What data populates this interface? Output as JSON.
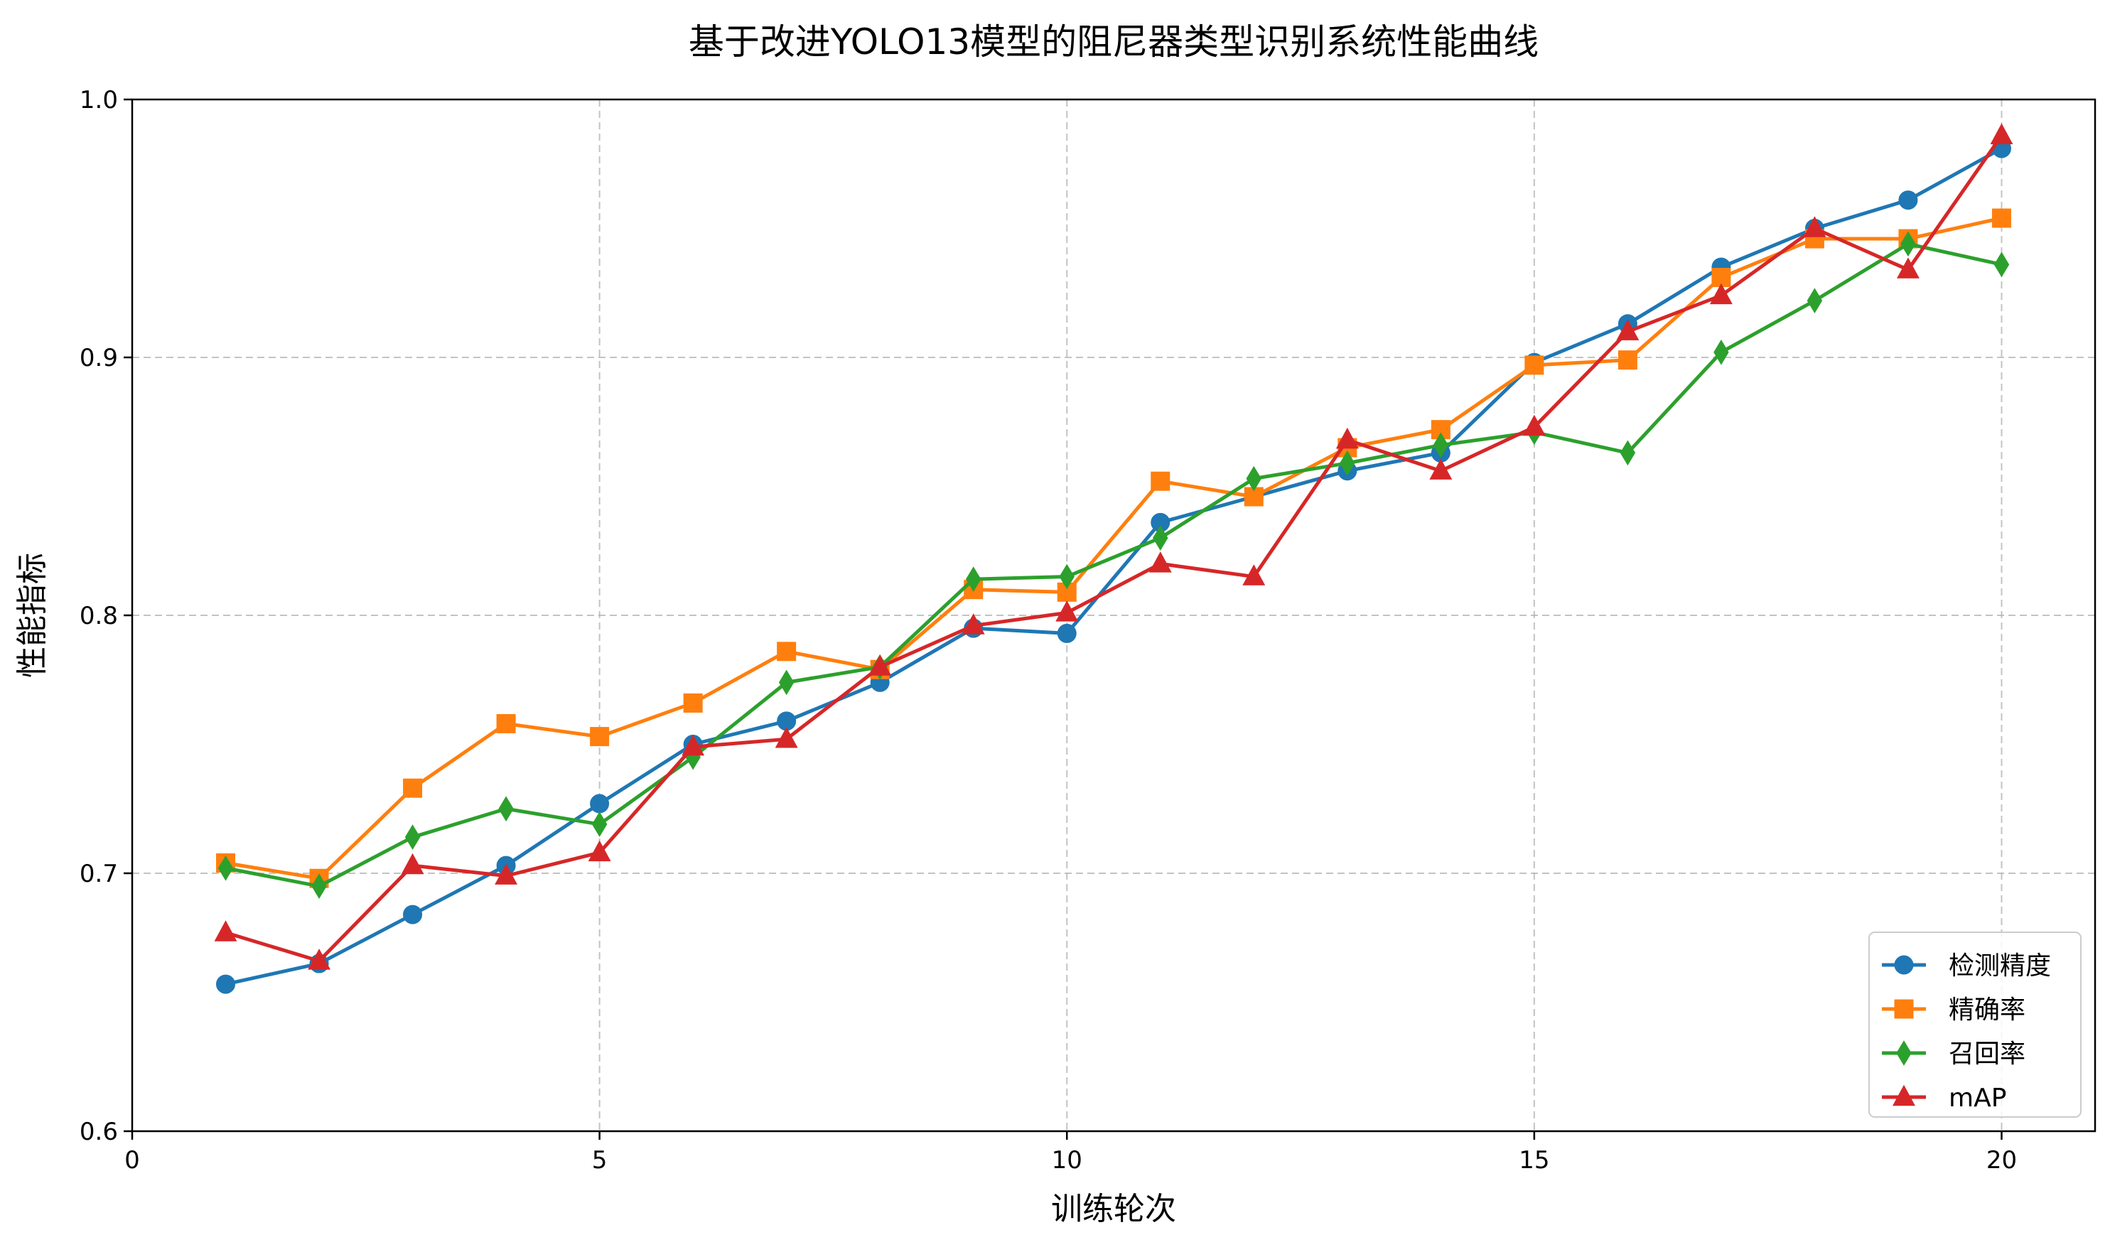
{
  "chart_data": {
    "type": "line",
    "title": "基于改进YOLO13模型的阻尼器类型识别系统性能曲线",
    "xlabel": "训练轮次",
    "ylabel": "性能指标",
    "xlim": [
      0,
      21
    ],
    "ylim": [
      0.6,
      1.0
    ],
    "xticks": [
      0,
      5,
      10,
      15,
      20
    ],
    "yticks": [
      0.6,
      0.7,
      0.8,
      0.9,
      1.0
    ],
    "xtick_labels": [
      "0",
      "5",
      "10",
      "15",
      "20"
    ],
    "ytick_labels": [
      "0.6",
      "0.7",
      "0.8",
      "0.9",
      "1.0"
    ],
    "grid": true,
    "legend_position": "lower-right",
    "x": [
      1,
      2,
      3,
      4,
      5,
      6,
      7,
      8,
      9,
      10,
      11,
      12,
      13,
      14,
      15,
      16,
      17,
      18,
      19,
      20
    ],
    "series": [
      {
        "name": "检测精度",
        "color": "#1f77b4",
        "marker": "circle",
        "values": [
          0.657,
          0.665,
          0.684,
          0.703,
          0.727,
          0.75,
          0.759,
          0.774,
          0.795,
          0.793,
          0.836,
          0.846,
          0.856,
          0.863,
          0.898,
          0.913,
          0.935,
          0.95,
          0.961,
          0.981
        ]
      },
      {
        "name": "精确率",
        "color": "#ff7f0e",
        "marker": "square",
        "values": [
          0.704,
          0.698,
          0.733,
          0.758,
          0.753,
          0.766,
          0.786,
          0.779,
          0.81,
          0.809,
          0.852,
          0.846,
          0.865,
          0.872,
          0.897,
          0.899,
          0.931,
          0.946,
          0.946,
          0.954
        ]
      },
      {
        "name": "召回率",
        "color": "#2ca02c",
        "marker": "diamond",
        "values": [
          0.702,
          0.695,
          0.714,
          0.725,
          0.719,
          0.745,
          0.774,
          0.78,
          0.814,
          0.815,
          0.83,
          0.853,
          0.859,
          0.866,
          0.871,
          0.863,
          0.902,
          0.922,
          0.944,
          0.936
        ]
      },
      {
        "name": "mAP",
        "color": "#d62728",
        "marker": "triangle",
        "values": [
          0.677,
          0.666,
          0.703,
          0.699,
          0.708,
          0.749,
          0.752,
          0.78,
          0.796,
          0.801,
          0.82,
          0.815,
          0.868,
          0.856,
          0.873,
          0.91,
          0.924,
          0.95,
          0.934,
          0.986
        ]
      }
    ]
  }
}
